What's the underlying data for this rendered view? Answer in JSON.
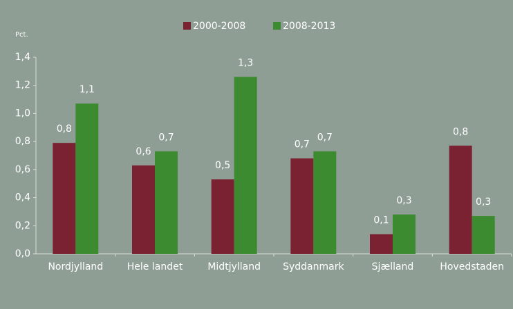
{
  "chart_data": {
    "type": "bar",
    "y_unit": "Pct.",
    "categories": [
      "Nordjylland",
      "Hele landet",
      "Midtjylland",
      "Syddanmark",
      "Sjælland",
      "Hovedstaden"
    ],
    "series": [
      {
        "name": "2000-2008",
        "color": "#7b2232",
        "values": [
          0.79,
          0.63,
          0.53,
          0.68,
          0.14,
          0.77
        ],
        "value_labels": [
          "0,8",
          "0,6",
          "0,5",
          "0,7",
          "0,1",
          "0,8"
        ]
      },
      {
        "name": "2008-2013",
        "color": "#3c8b31",
        "values": [
          1.07,
          0.73,
          1.26,
          0.73,
          0.28,
          0.27
        ],
        "value_labels": [
          "1,1",
          "0,7",
          "1,3",
          "0,7",
          "0,3",
          "0,3"
        ]
      }
    ],
    "ylim": [
      0,
      1.4
    ],
    "yticks": [
      {
        "value": 0,
        "label": "0,0"
      },
      {
        "value": 0.2,
        "label": "0,2"
      },
      {
        "value": 0.4,
        "label": "0,4"
      },
      {
        "value": 0.6,
        "label": "0,6"
      },
      {
        "value": 0.8,
        "label": "0,8"
      },
      {
        "value": 1.0,
        "label": "1,0"
      },
      {
        "value": 1.2,
        "label": "1,2"
      },
      {
        "value": 1.4,
        "label": "1,4"
      }
    ],
    "grid": false,
    "legend": "top"
  }
}
